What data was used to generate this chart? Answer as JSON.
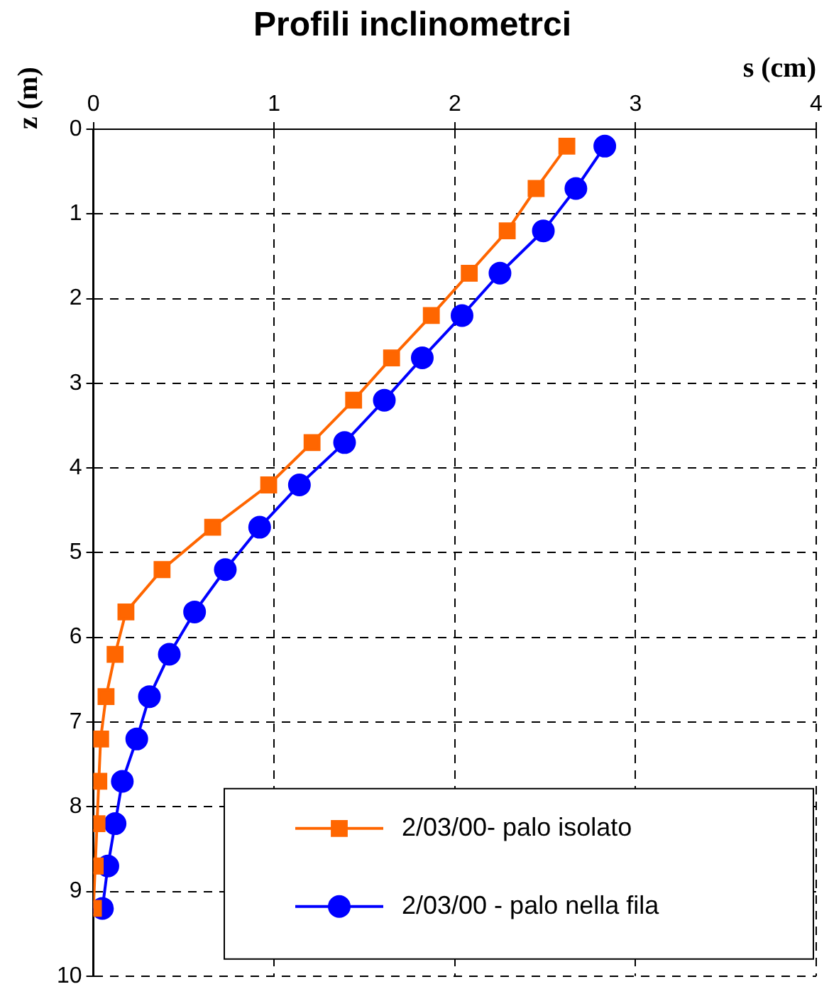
{
  "chart_data": {
    "type": "line",
    "title": "Profili inclinometrci",
    "xlabel": "s (cm)",
    "ylabel": "z (m)",
    "xlim": [
      0,
      4
    ],
    "xticks": [
      0,
      1,
      2,
      3,
      4
    ],
    "ylim": [
      10,
      0
    ],
    "yticks": [
      0,
      1,
      2,
      3,
      4,
      5,
      6,
      7,
      8,
      9,
      10
    ],
    "grid": true,
    "legend": "bottom right",
    "line_style": "solid",
    "series": [
      {
        "name": "2/03/00- palo isolato",
        "color": "#ff6600",
        "marker": "square",
        "x": [
          2.62,
          2.45,
          2.29,
          2.08,
          1.87,
          1.65,
          1.44,
          1.21,
          0.97,
          0.66,
          0.38,
          0.18,
          0.12,
          0.07,
          0.04,
          0.03,
          0.02,
          0.01,
          0.0
        ],
        "values": [
          0.2,
          0.7,
          1.2,
          1.7,
          2.2,
          2.7,
          3.2,
          3.7,
          4.2,
          4.7,
          5.2,
          5.7,
          6.2,
          6.7,
          7.2,
          7.7,
          8.2,
          8.7,
          9.2
        ]
      },
      {
        "name": "2/03/00 - palo nella fila",
        "color": "#0000ff",
        "marker": "circle",
        "x": [
          2.83,
          2.67,
          2.49,
          2.25,
          2.04,
          1.82,
          1.61,
          1.39,
          1.14,
          0.92,
          0.73,
          0.56,
          0.42,
          0.31,
          0.24,
          0.16,
          0.12,
          0.08,
          0.05
        ],
        "values": [
          0.2,
          0.7,
          1.2,
          1.7,
          2.2,
          2.7,
          3.2,
          3.7,
          4.2,
          4.7,
          5.2,
          5.7,
          6.2,
          6.7,
          7.2,
          7.7,
          8.2,
          8.7,
          9.2
        ]
      }
    ]
  }
}
